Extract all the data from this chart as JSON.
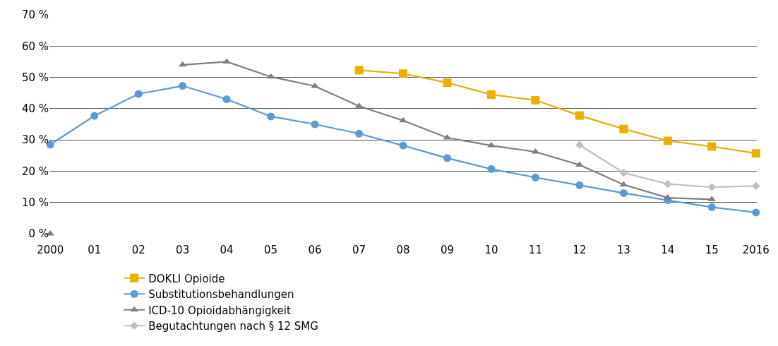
{
  "chart_data": {
    "type": "line",
    "categories": [
      "2000",
      "01",
      "02",
      "03",
      "04",
      "05",
      "06",
      "07",
      "08",
      "09",
      "10",
      "11",
      "12",
      "13",
      "14",
      "15",
      "2016"
    ],
    "series": [
      {
        "name": "DOKLI Opioide",
        "color": "#e8b100",
        "marker": "square",
        "values": [
          null,
          null,
          null,
          null,
          null,
          null,
          null,
          52.3,
          51.2,
          48.3,
          44.5,
          42.7,
          37.8,
          33.5,
          29.7,
          27.9,
          25.7
        ]
      },
      {
        "name": "Substitutionsbehandlungen",
        "color": "#5b9bd5",
        "marker": "circle",
        "values": [
          28.5,
          37.7,
          44.7,
          47.3,
          43.0,
          37.5,
          35.0,
          32.0,
          28.2,
          24.2,
          20.7,
          18.0,
          15.5,
          13.0,
          10.7,
          8.5,
          6.8
        ]
      },
      {
        "name": "ICD-10 Opioidabhängigkeit",
        "color": "#7f7f7f",
        "marker": "triangle",
        "values": [
          0,
          null,
          null,
          54.0,
          55.0,
          50.2,
          47.2,
          40.8,
          36.2,
          30.7,
          28.2,
          26.2,
          22.0,
          15.7,
          11.5,
          11.0,
          null
        ]
      },
      {
        "name": "Begutachtungen nach § 12 SMG",
        "color": "#bfbfbf",
        "marker": "diamond",
        "values": [
          null,
          null,
          null,
          null,
          null,
          null,
          null,
          null,
          null,
          null,
          null,
          null,
          28.4,
          19.5,
          15.9,
          14.9,
          15.3
        ]
      }
    ],
    "ylim": [
      0,
      70
    ],
    "yticks": [
      {
        "value": 0,
        "label": "0 %"
      },
      {
        "value": 10,
        "label": "10 %"
      },
      {
        "value": 20,
        "label": "20 %"
      },
      {
        "value": 30,
        "label": "30 %"
      },
      {
        "value": 40,
        "label": "40 %"
      },
      {
        "value": 50,
        "label": "50 %"
      },
      {
        "value": 60,
        "label": "60 %"
      },
      {
        "value": 70,
        "label": "70 %"
      }
    ],
    "grid": "y",
    "legend": "bottom",
    "line_style": "solid"
  }
}
